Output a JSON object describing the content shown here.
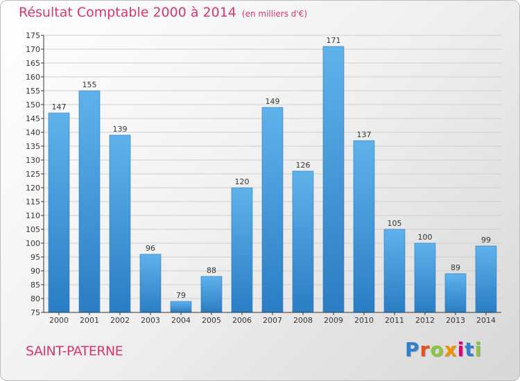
{
  "header": {
    "title": "Résultat Comptable 2000 à 2014",
    "unit": "(en milliers d'€)"
  },
  "footer": {
    "commune": "SAINT-PATERNE",
    "logo_text": "Proxiti",
    "logo_colors": [
      "#2d7fd0",
      "#e94e1b",
      "#8cc63f",
      "#f39200",
      "#e2007a",
      "#2d7fd0",
      "#8cc63f"
    ]
  },
  "colors": {
    "bar_top": "#5fb2ea",
    "bar_bottom": "#2b7dc4",
    "axis": "#333333",
    "grid": "#cfcfcf",
    "accent": "#d8366a"
  },
  "chart_data": {
    "type": "bar",
    "title": "Résultat Comptable 2000 à 2014",
    "subtitle": "(en milliers d'€)",
    "xlabel": "",
    "ylabel": "",
    "categories": [
      "2000",
      "2001",
      "2002",
      "2003",
      "2004",
      "2005",
      "2006",
      "2007",
      "2008",
      "2009",
      "2010",
      "2011",
      "2012",
      "2013",
      "2014"
    ],
    "values": [
      147,
      155,
      139,
      96,
      79,
      88,
      120,
      149,
      126,
      171,
      137,
      105,
      100,
      89,
      99
    ],
    "data_labels": [
      "147",
      "155",
      "139",
      "96",
      "79",
      "88",
      "120",
      "149",
      "126",
      "171",
      "137",
      "105",
      "100",
      "89",
      "99"
    ],
    "ylim": [
      75,
      175
    ],
    "ytick_step": 5,
    "yticks": [
      "75",
      "80",
      "85",
      "90",
      "95",
      "100",
      "105",
      "110",
      "115",
      "120",
      "125",
      "130",
      "135",
      "140",
      "145",
      "150",
      "155",
      "160",
      "165",
      "170",
      "175"
    ],
    "grid": true
  }
}
